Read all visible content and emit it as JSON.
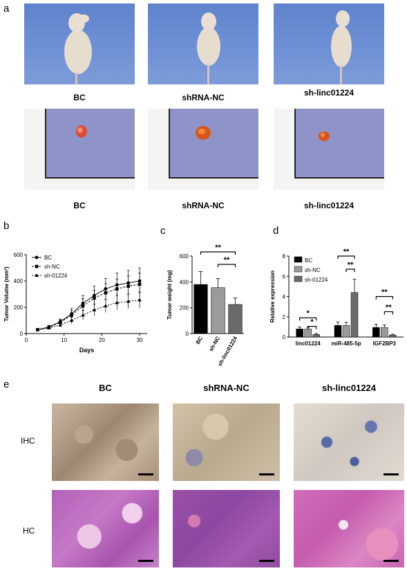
{
  "panel_labels": {
    "a": "a",
    "b": "b",
    "c": "c",
    "d": "d",
    "e": "e"
  },
  "panel_a": {
    "mouse_captions": [
      "BC",
      "shRNA-NC",
      "sh-linc01224"
    ],
    "tumor_captions": [
      "BC",
      "shRNA-NC",
      "sh-linc01224"
    ]
  },
  "panel_e": {
    "column_titles": [
      "BC",
      "shRNA-NC",
      "sh-linc01224"
    ],
    "row_labels": [
      "IHC",
      "HC"
    ]
  },
  "chart_data": [
    {
      "type": "line",
      "xlabel": "Days",
      "ylabel": "Tumor Volume (mm³)",
      "xlim": [
        0,
        32
      ],
      "ylim": [
        0,
        600
      ],
      "xticks": [
        0,
        10,
        20,
        30
      ],
      "yticks": [
        0,
        200,
        400,
        600
      ],
      "x": [
        3,
        6,
        9,
        12,
        15,
        18,
        21,
        24,
        27,
        30
      ],
      "series": [
        {
          "name": "BC",
          "marker": "circle",
          "values": [
            30,
            50,
            90,
            150,
            230,
            290,
            340,
            370,
            385,
            400
          ],
          "error": [
            8,
            12,
            20,
            40,
            60,
            70,
            80,
            90,
            95,
            100
          ]
        },
        {
          "name": "sh-NC",
          "marker": "square",
          "values": [
            30,
            48,
            85,
            140,
            210,
            270,
            310,
            340,
            360,
            375
          ],
          "error": [
            8,
            10,
            20,
            35,
            55,
            60,
            70,
            75,
            80,
            85
          ]
        },
        {
          "name": "sh-01224",
          "marker": "triangle",
          "values": [
            28,
            42,
            65,
            100,
            140,
            180,
            210,
            235,
            245,
            255
          ],
          "error": [
            6,
            10,
            15,
            25,
            35,
            45,
            50,
            55,
            55,
            60
          ]
        }
      ],
      "legend": "top-left"
    },
    {
      "type": "bar",
      "ylabel": "Tumor weight (mg)",
      "ylim": [
        0,
        600
      ],
      "yticks": [
        0,
        200,
        400,
        600
      ],
      "categories": [
        "BC",
        "sh-NC",
        "sh-linc01224"
      ],
      "values": [
        380,
        355,
        225
      ],
      "error": [
        100,
        70,
        50
      ],
      "colors": [
        "#000000",
        "#9b9b9b",
        "#6a6a6a"
      ],
      "significance": [
        {
          "from": 0,
          "to": 2,
          "label": "**"
        },
        {
          "from": 1,
          "to": 2,
          "label": "**"
        }
      ]
    },
    {
      "type": "bar",
      "ylabel": "Relative expression",
      "ylim": [
        0,
        8
      ],
      "yticks": [
        0,
        2,
        4,
        6,
        8
      ],
      "categories": [
        "linc01224",
        "miR-485-5p",
        "IGF2BP3"
      ],
      "series": [
        {
          "name": "BC",
          "color": "#000000",
          "values": [
            0.8,
            1.15,
            0.95
          ],
          "error": [
            0.2,
            0.35,
            0.3
          ]
        },
        {
          "name": "sh-NC",
          "color": "#9b9b9b",
          "values": [
            0.8,
            1.15,
            0.95
          ],
          "error": [
            0.15,
            0.3,
            0.25
          ]
        },
        {
          "name": "sh-01224",
          "color": "#6a6a6a",
          "values": [
            0.25,
            4.4,
            0.2
          ],
          "error": [
            0.1,
            1.3,
            0.08
          ]
        }
      ],
      "legend": "top-left",
      "significance": [
        {
          "group": 0,
          "from": 0,
          "to": 2,
          "label": "*"
        },
        {
          "group": 0,
          "from": 1,
          "to": 2,
          "label": "*"
        },
        {
          "group": 1,
          "from": 0,
          "to": 2,
          "label": "**"
        },
        {
          "group": 1,
          "from": 1,
          "to": 2,
          "label": "**"
        },
        {
          "group": 2,
          "from": 0,
          "to": 2,
          "label": "**"
        },
        {
          "group": 2,
          "from": 1,
          "to": 2,
          "label": "**"
        }
      ]
    }
  ]
}
